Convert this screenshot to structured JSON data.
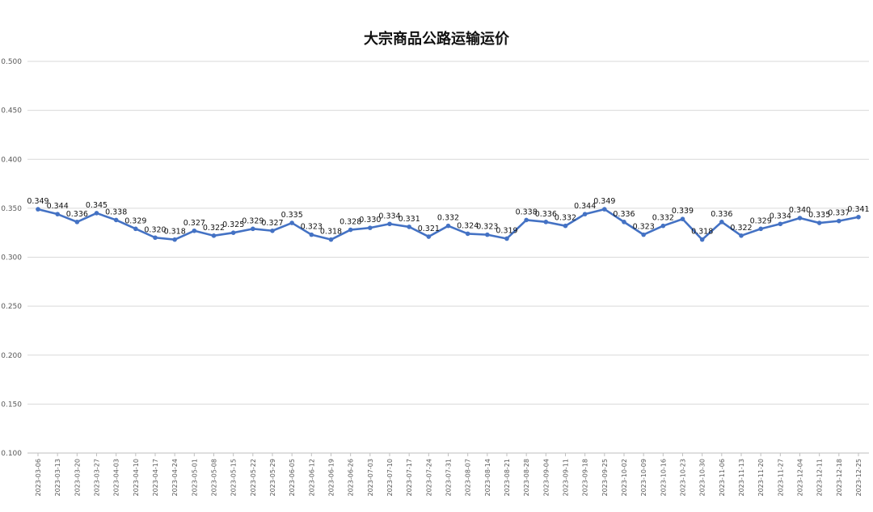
{
  "chart_data": {
    "type": "line",
    "title": "大宗商品公路运输运价",
    "xlabel": "",
    "ylabel": "",
    "ylim": [
      0.1,
      0.5
    ],
    "yticks": [
      "0.100",
      "0.150",
      "0.200",
      "0.250",
      "0.300",
      "0.350",
      "0.400",
      "0.450",
      "0.500"
    ],
    "grid": true,
    "legend": "none",
    "series_color": "#4472c4",
    "x": [
      "2023-03-06",
      "2023-03-13",
      "2023-03-20",
      "2023-03-27",
      "2023-04-03",
      "2023-04-10",
      "2023-04-17",
      "2023-04-24",
      "2023-05-01",
      "2023-05-08",
      "2023-05-15",
      "2023-05-22",
      "2023-05-29",
      "2023-06-05",
      "2023-06-12",
      "2023-06-19",
      "2023-06-26",
      "2023-07-03",
      "2023-07-10",
      "2023-07-17",
      "2023-07-24",
      "2023-07-31",
      "2023-08-07",
      "2023-08-14",
      "2023-08-21",
      "2023-08-28",
      "2023-09-04",
      "2023-09-11",
      "2023-09-18",
      "2023-09-25",
      "2023-10-02",
      "2023-10-09",
      "2023-10-16",
      "2023-10-23",
      "2023-10-30",
      "2023-11-06",
      "2023-11-13",
      "2023-11-20",
      "2023-11-27",
      "2023-12-04",
      "2023-12-11",
      "2023-12-18",
      "2023-12-25"
    ],
    "series": [
      {
        "values": [
          0.349,
          0.344,
          0.336,
          0.345,
          0.338,
          0.329,
          0.32,
          0.318,
          0.327,
          0.322,
          0.325,
          0.329,
          0.327,
          0.335,
          0.323,
          0.318,
          0.328,
          0.33,
          0.334,
          0.331,
          0.321,
          0.332,
          0.324,
          0.323,
          0.319,
          0.338,
          0.336,
          0.332,
          0.344,
          0.349,
          0.336,
          0.323,
          0.332,
          0.339,
          0.318,
          0.336,
          0.322,
          0.329,
          0.334,
          0.34,
          0.335,
          0.337,
          0.341
        ],
        "labels": [
          "0.349",
          "0.344",
          "0.336",
          "0.345",
          "0.338",
          "0.329",
          "0.320",
          "0.318",
          "0.327",
          "0.322",
          "0.325",
          "0.329",
          "0.327",
          "0.335",
          "0.323",
          "0.318",
          "0.328",
          "0.330",
          "0.334",
          "0.331",
          "0.321",
          "0.332",
          "0.324",
          "0.323",
          "0.319",
          "0.338",
          "0.336",
          "0.332",
          "0.344",
          "0.349",
          "0.336",
          "0.323",
          "0.332",
          "0.339",
          "0.318",
          "0.336",
          "0.322",
          "0.329",
          "0.334",
          "0.340",
          "0.335",
          "0.337",
          "0.341"
        ]
      }
    ]
  }
}
